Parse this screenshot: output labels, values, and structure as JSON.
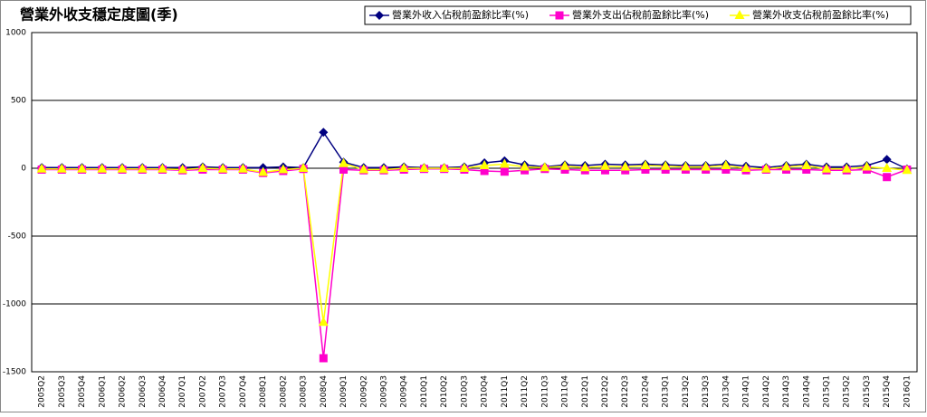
{
  "chart_data": {
    "type": "line",
    "title": "營業外收支穩定度圖(季)",
    "categories": [
      "2005Q2",
      "2005Q3",
      "2005Q4",
      "2006Q1",
      "2006Q2",
      "2006Q3",
      "2006Q4",
      "2007Q1",
      "2007Q2",
      "2007Q3",
      "2007Q4",
      "2008Q1",
      "2008Q2",
      "2008Q3",
      "2008Q4",
      "2009Q1",
      "2009Q2",
      "2009Q3",
      "2009Q4",
      "2010Q1",
      "2010Q2",
      "2010Q3",
      "2010Q4",
      "2011Q1",
      "2011Q2",
      "2011Q3",
      "2011Q4",
      "2012Q1",
      "2012Q2",
      "2012Q3",
      "2012Q4",
      "2013Q1",
      "2013Q2",
      "2013Q3",
      "2013Q4",
      "2014Q1",
      "2014Q2",
      "2014Q3",
      "2014Q4",
      "2015Q1",
      "2015Q2",
      "2015Q3",
      "2015Q4",
      "2016Q1"
    ],
    "series": [
      {
        "name": "營業外收入佔稅前盈餘比率(%)",
        "color": "#000080",
        "marker": "diamond",
        "values": [
          5,
          5,
          5,
          5,
          5,
          5,
          5,
          5,
          10,
          5,
          5,
          5,
          10,
          5,
          265,
          45,
          5,
          5,
          10,
          5,
          5,
          10,
          40,
          55,
          25,
          10,
          25,
          20,
          30,
          25,
          30,
          25,
          20,
          20,
          30,
          15,
          5,
          20,
          30,
          10,
          10,
          20,
          65,
          -5
        ]
      },
      {
        "name": "營業外支出佔稅前盈餘比率(%)",
        "color": "#ff00cc",
        "marker": "square",
        "values": [
          -10,
          -10,
          -10,
          -10,
          -10,
          -10,
          -10,
          -15,
          -10,
          -10,
          -10,
          -35,
          -20,
          -5,
          -1400,
          -10,
          -15,
          -15,
          -10,
          -5,
          -5,
          -10,
          -20,
          -25,
          -15,
          -5,
          -10,
          -15,
          -15,
          -15,
          -10,
          -10,
          -10,
          -10,
          -10,
          -15,
          -10,
          -10,
          -10,
          -15,
          -15,
          -10,
          -65,
          -10
        ]
      },
      {
        "name": "營業外收支佔稅前盈餘比率(%)",
        "color": "#ffff00",
        "marker": "triangle",
        "values": [
          -5,
          -5,
          -5,
          -5,
          -5,
          -5,
          -5,
          -10,
          0,
          -5,
          -5,
          -30,
          -10,
          0,
          -1135,
          35,
          -10,
          -10,
          0,
          0,
          0,
          0,
          20,
          30,
          10,
          5,
          15,
          5,
          15,
          10,
          20,
          15,
          10,
          10,
          20,
          0,
          -5,
          10,
          20,
          -5,
          -5,
          10,
          0,
          -15
        ]
      }
    ],
    "ylim": [
      -1500,
      1000
    ],
    "yticks": [
      -1500,
      -1000,
      -500,
      0,
      500,
      1000
    ],
    "grid": true,
    "legend": "top-right"
  }
}
